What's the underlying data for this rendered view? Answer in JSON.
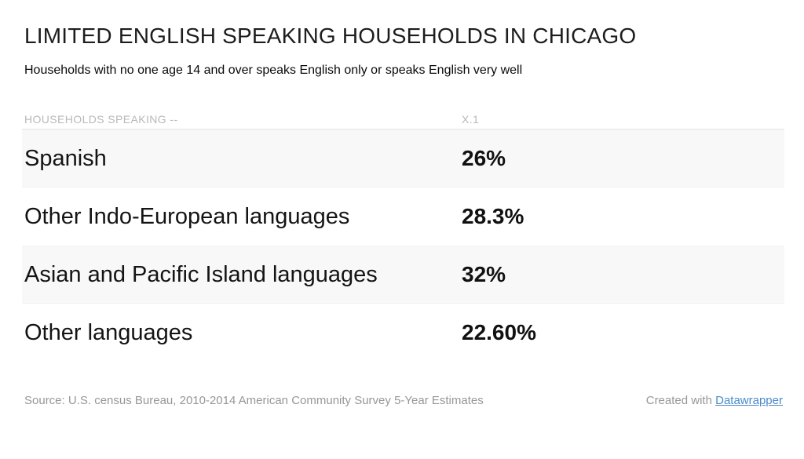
{
  "title": "LIMITED ENGLISH SPEAKING HOUSEHOLDS IN CHICAGO",
  "subtitle": "Households with no one age 14 and over speaks English only or speaks English very well",
  "table": {
    "columns": [
      "HOUSEHOLDS SPEAKING --",
      "X.1"
    ],
    "rows": [
      {
        "label": "Spanish",
        "value": "26%"
      },
      {
        "label": "Other Indo-European languages",
        "value": "28.3%"
      },
      {
        "label": "Asian and Pacific Island languages",
        "value": "32%"
      },
      {
        "label": "Other languages",
        "value": "22.60%"
      }
    ]
  },
  "footer": {
    "source": "Source: U.S. census Bureau, 2010-2014 American Community Survey 5-Year Estimates",
    "credit_prefix": "Created with ",
    "credit_link": "Datawrapper"
  },
  "colors": {
    "link_blue": "#4a8bc9",
    "row_stripe": "#f8f8f8",
    "header_gray": "#b9b9b9",
    "footer_gray": "#979797",
    "text_black": "#141414"
  },
  "chart_data": {
    "type": "table",
    "title": "LIMITED ENGLISH SPEAKING HOUSEHOLDS IN CHICAGO",
    "subtitle": "Households with no one age 14 and over speaks English only or speaks English very well",
    "columns": [
      "HOUSEHOLDS SPEAKING --",
      "X.1"
    ],
    "categories": [
      "Spanish",
      "Other Indo-European languages",
      "Asian and Pacific Island languages",
      "Other languages"
    ],
    "values": [
      26,
      28.3,
      32,
      22.6
    ],
    "value_labels": [
      "26%",
      "28.3%",
      "32%",
      "22.60%"
    ],
    "source": "Source: U.S. census Bureau, 2010-2014 American Community Survey 5-Year Estimates",
    "credit": "Created with Datawrapper"
  }
}
